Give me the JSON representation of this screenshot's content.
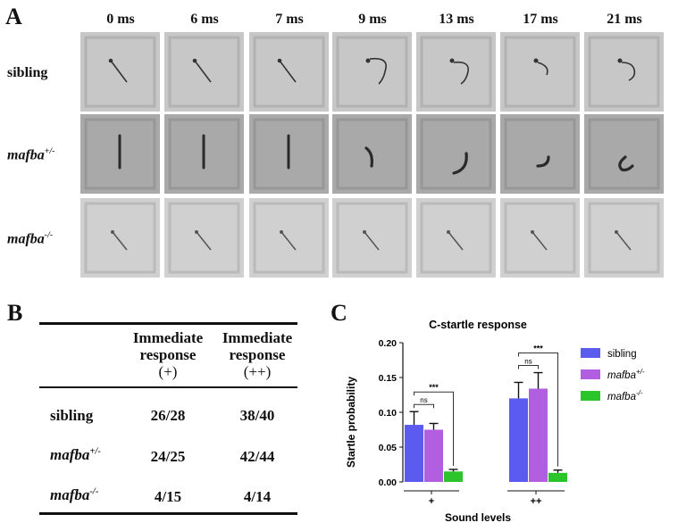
{
  "panelA": {
    "letter": "A",
    "times": [
      "0 ms",
      "6 ms",
      "7 ms",
      "9 ms",
      "13 ms",
      "17 ms",
      "21 ms"
    ],
    "rows": [
      {
        "label": "sibling",
        "sup": ""
      },
      {
        "label": "mafba",
        "sup": "+/-"
      },
      {
        "label": "mafba",
        "sup": "-/-"
      }
    ]
  },
  "panelB": {
    "letter": "B",
    "col1": [
      "Immediate",
      "response",
      "(+)"
    ],
    "col2": [
      "Immediate",
      "response",
      "(++)"
    ],
    "rows": [
      {
        "label": "sibling",
        "sup": "",
        "v1": "26/28",
        "v2": "38/40"
      },
      {
        "label": "mafba",
        "sup": "+/-",
        "v1": "24/25",
        "v2": "42/44"
      },
      {
        "label": "mafba",
        "sup": "-/-",
        "v1": "4/15",
        "v2": "4/14"
      }
    ]
  },
  "panelC": {
    "letter": "C",
    "sig": {
      "ns": "ns",
      "star": "***"
    }
  },
  "chart_data": {
    "type": "bar",
    "title": "C-startle response",
    "xlabel": "Sound levels",
    "ylabel": "Startle  probability",
    "categories": [
      "+",
      "++"
    ],
    "yticks": [
      "0.00",
      "0.05",
      "0.10",
      "0.15",
      "0.20"
    ],
    "ylim": [
      0,
      0.2
    ],
    "series": [
      {
        "name": "sibling",
        "sup": "",
        "color": "#5b5bf0",
        "values": [
          0.082,
          0.12
        ],
        "errors": [
          0.019,
          0.023
        ]
      },
      {
        "name": "mafba",
        "sup": "+/-",
        "color": "#b25ee0",
        "values": [
          0.075,
          0.134
        ],
        "errors": [
          0.009,
          0.023
        ]
      },
      {
        "name": "mafba",
        "sup": "-/-",
        "color": "#2bc42b",
        "values": [
          0.015,
          0.013
        ],
        "errors": [
          0.003,
          0.004
        ]
      }
    ],
    "legend": "right"
  }
}
